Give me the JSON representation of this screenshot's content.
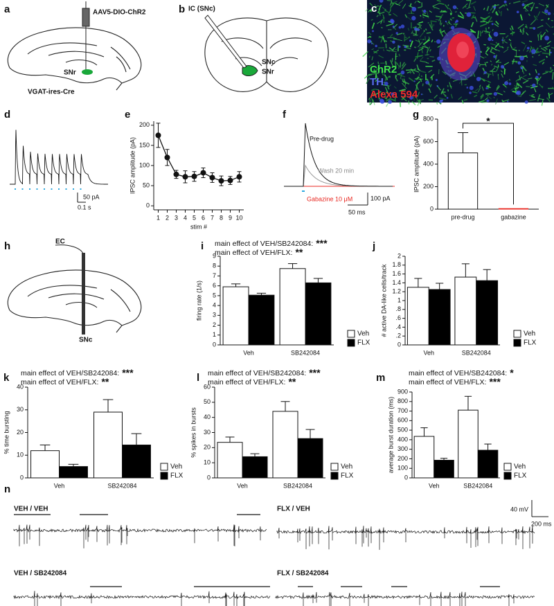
{
  "diagrams": {
    "a": {
      "panel": "a",
      "vector": "AAV5-DIO-ChR2",
      "region": "SNr",
      "mouse": "VGAT-ires-Cre"
    },
    "b": {
      "panel": "b",
      "pipette": "IC (SNc)",
      "labels": [
        "SNc",
        "SNr"
      ]
    },
    "c": {
      "panel": "c",
      "stains": [
        "ChR2",
        "TH",
        "Alexa 594"
      ]
    },
    "d": {
      "panel": "d",
      "scale_y": "50 pA",
      "scale_x": "0.1 s"
    },
    "f": {
      "panel": "f",
      "traces": [
        "Pre-drug",
        "Wash 20 min",
        "Gabazine 10 μM"
      ],
      "scale_y": "100 pA",
      "scale_x": "50 ms"
    },
    "h": {
      "panel": "h",
      "electrode": "EC",
      "region": "SNc"
    },
    "n": {
      "panel": "n",
      "conditions": [
        "VEH / VEH",
        "FLX / VEH",
        "VEH / SB242084",
        "FLX / SB242084"
      ],
      "scale_y": "40 mV",
      "scale_x": "200 ms"
    }
  },
  "chart_data": [
    {
      "panel": "e",
      "type": "line",
      "x": [
        1,
        2,
        3,
        4,
        5,
        6,
        7,
        8,
        9,
        10
      ],
      "series": [
        {
          "color": "#111111",
          "values": [
            175,
            120,
            78,
            72,
            73,
            82,
            70,
            62,
            63,
            72
          ],
          "errors": [
            30,
            20,
            10,
            15,
            12,
            12,
            12,
            12,
            10,
            13
          ]
        }
      ],
      "xlabel": "stim #",
      "ylabel": "IPSC amplitude (pA)",
      "xlim": [
        0.5,
        10.5
      ],
      "ylim": [
        -10,
        210
      ],
      "xticks": [
        1,
        2,
        3,
        4,
        5,
        6,
        7,
        8,
        9,
        10
      ],
      "yticks": [
        0,
        50,
        100,
        150,
        200
      ]
    },
    {
      "panel": "g",
      "type": "bar",
      "categories": [
        "pre-drug",
        "gabazine"
      ],
      "values": [
        500,
        5
      ],
      "errors": [
        180,
        null
      ],
      "colors": [
        "#ffffff",
        "#e8261f"
      ],
      "ylabel": "IPSC amplitude (pA)",
      "ylim": [
        0,
        800
      ],
      "yticks": [
        0,
        200,
        400,
        600,
        800
      ],
      "annotation": "*"
    },
    {
      "panel": "i",
      "type": "grouped_bar",
      "categories": [
        "Veh",
        "SB242084"
      ],
      "series": [
        {
          "name": "Veh",
          "color": "#ffffff",
          "values": [
            5.9,
            7.75
          ],
          "errors": [
            0.3,
            0.5
          ]
        },
        {
          "name": "FLX",
          "color": "#000000",
          "values": [
            5.05,
            6.3
          ],
          "errors": [
            0.2,
            0.45
          ]
        }
      ],
      "ylabel": "firing rate (1/s)",
      "ylim": [
        0,
        9
      ],
      "yticks": [
        0,
        1,
        2,
        3,
        4,
        5,
        6,
        7,
        8,
        9
      ],
      "annotations": [
        {
          "text": "main effect of VEH/SB242084:",
          "stars": "***"
        },
        {
          "text": "main effect of VEH/FLX:",
          "stars": "**"
        }
      ]
    },
    {
      "panel": "j",
      "type": "grouped_bar",
      "categories": [
        "Veh",
        "SB242084"
      ],
      "series": [
        {
          "name": "Veh",
          "color": "#ffffff",
          "values": [
            1.3,
            1.53
          ],
          "errors": [
            0.2,
            0.3
          ]
        },
        {
          "name": "FLX",
          "color": "#000000",
          "values": [
            1.25,
            1.45
          ],
          "errors": [
            0.14,
            0.25
          ]
        }
      ],
      "ylabel": "# active DA-like cells/track",
      "ylim": [
        0,
        2
      ],
      "yticks": [
        0,
        {
          "value": 0.2,
          "label": ".2"
        },
        {
          "value": 0.4,
          "label": ".4"
        },
        {
          "value": 0.6,
          "label": ".6"
        },
        {
          "value": 0.8,
          "label": ".8"
        },
        1,
        1.2,
        1.4,
        1.6,
        1.8,
        2
      ]
    },
    {
      "panel": "k",
      "type": "grouped_bar",
      "categories": [
        "Veh",
        "SB242084"
      ],
      "series": [
        {
          "name": "Veh",
          "color": "#ffffff",
          "values": [
            12,
            29
          ],
          "errors": [
            2.5,
            5.5
          ]
        },
        {
          "name": "FLX",
          "color": "#000000",
          "values": [
            5,
            14.5
          ],
          "errors": [
            1,
            5
          ]
        }
      ],
      "ylabel": "% time bursting",
      "ylim": [
        0,
        40
      ],
      "yticks": [
        0,
        10,
        20,
        30,
        40
      ],
      "annotations": [
        {
          "text": "main effect of VEH/SB242084:",
          "stars": "***"
        },
        {
          "text": "main effect of VEH/FLX:",
          "stars": "**"
        }
      ]
    },
    {
      "panel": "l",
      "type": "grouped_bar",
      "categories": [
        "Veh",
        "SB242084"
      ],
      "series": [
        {
          "name": "Veh",
          "color": "#ffffff",
          "values": [
            23.5,
            44
          ],
          "errors": [
            3.5,
            6.5
          ]
        },
        {
          "name": "FLX",
          "color": "#000000",
          "values": [
            14,
            26
          ],
          "errors": [
            2,
            6
          ]
        }
      ],
      "ylabel": "% spikes in bursts",
      "ylim": [
        0,
        60
      ],
      "yticks": [
        0,
        10,
        20,
        30,
        40,
        50,
        60
      ],
      "annotations": [
        {
          "text": "main effect of VEH/SB242084:",
          "stars": "***"
        },
        {
          "text": "main effect of VEH/FLX:",
          "stars": "**"
        }
      ]
    },
    {
      "panel": "m",
      "type": "grouped_bar",
      "categories": [
        "Veh",
        "SB242084"
      ],
      "series": [
        {
          "name": "Veh",
          "color": "#ffffff",
          "values": [
            435,
            710
          ],
          "errors": [
            90,
            145
          ]
        },
        {
          "name": "FLX",
          "color": "#000000",
          "values": [
            185,
            290
          ],
          "errors": [
            20,
            65
          ]
        }
      ],
      "ylabel": "average burst duration (ms)",
      "ylim": [
        0,
        900
      ],
      "yticks": [
        0,
        100,
        200,
        300,
        400,
        500,
        600,
        700,
        800,
        900
      ],
      "annotations": [
        {
          "text": "main effect of VEH/SB242084:",
          "stars": "*"
        },
        {
          "text": "main effect of VEH/FLX:",
          "stars": "***"
        }
      ]
    }
  ]
}
